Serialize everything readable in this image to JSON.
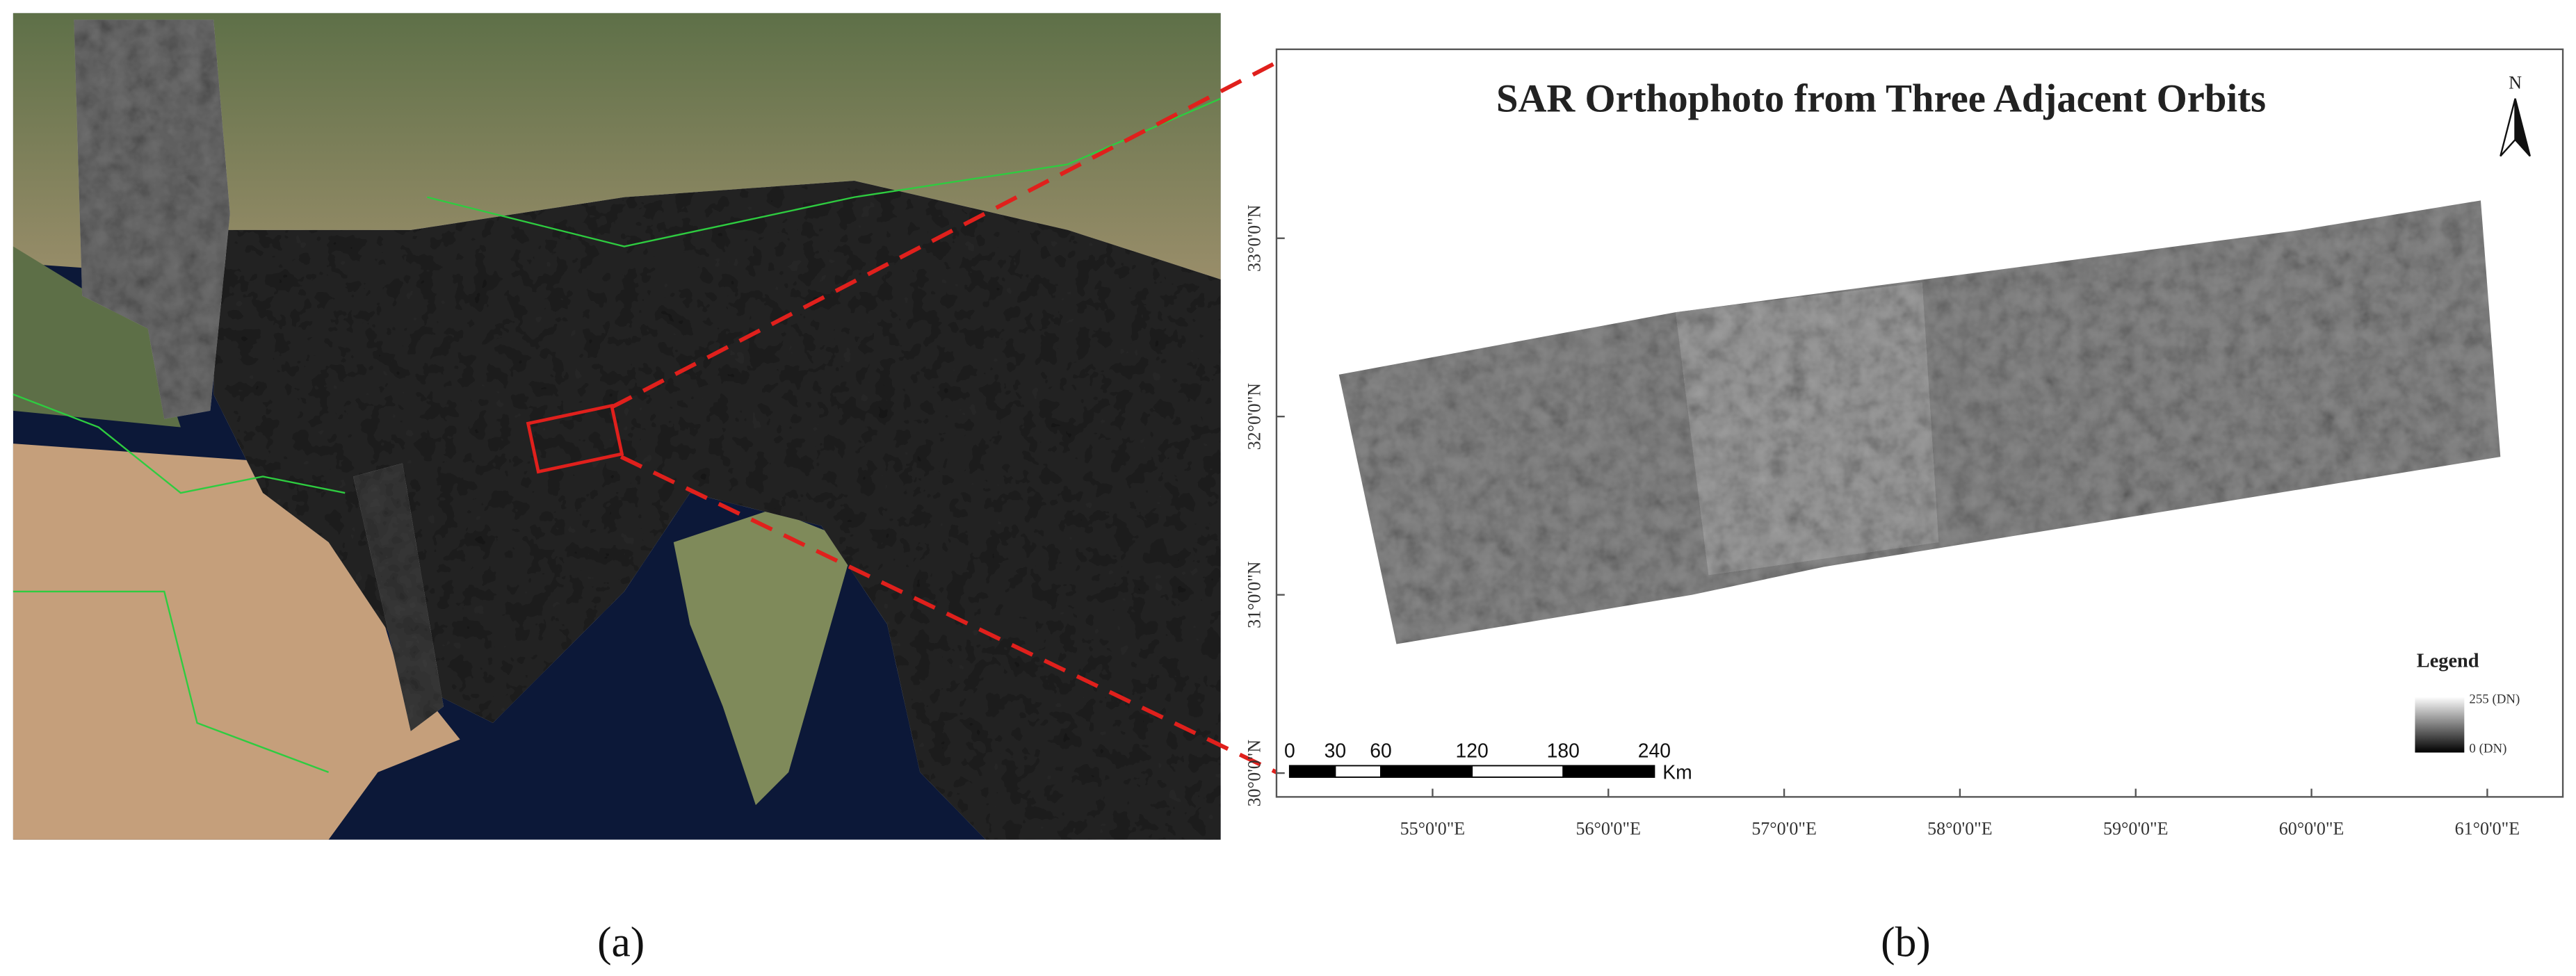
{
  "panel_a": {
    "label": "(a)"
  },
  "panel_b": {
    "label": "(b)",
    "title": "SAR Orthophoto from Three Adjacent Orbits",
    "north": "N",
    "lat_labels": [
      "33°0'0\"N",
      "32°0'0\"N",
      "31°0'0\"N",
      "30°0'0\"N"
    ],
    "lon_labels": [
      "55°0'0\"E",
      "56°0'0\"E",
      "57°0'0\"E",
      "58°0'0\"E",
      "59°0'0\"E",
      "60°0'0\"E",
      "61°0'0\"E"
    ],
    "scale_bar": {
      "ticks": [
        0,
        30,
        60,
        120,
        180,
        240
      ],
      "unit": "Km"
    },
    "legend": {
      "title": "Legend",
      "high": "255 (DN)",
      "low": "0 (DN)"
    }
  }
}
